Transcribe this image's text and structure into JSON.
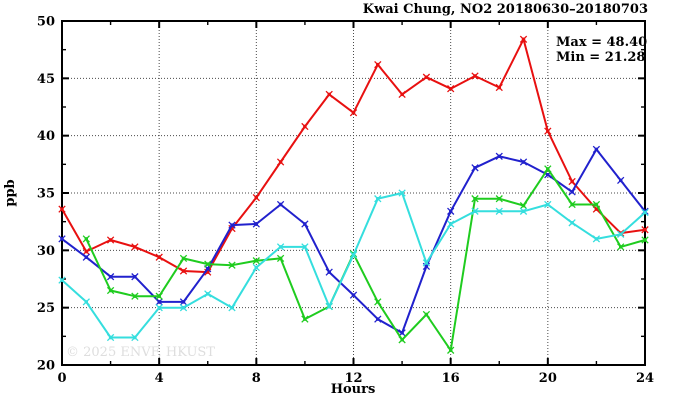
{
  "watermark": "© 2025 ENVF, HKUST",
  "chart_data": {
    "type": "line",
    "title": "Kwai Chung, NO2 20180630–20180703",
    "xlabel": "Hours",
    "ylabel": "ppb",
    "xlim": [
      0,
      24
    ],
    "ylim": [
      20,
      50
    ],
    "grid": "dotted-at-major-ticks",
    "legend_position": "none",
    "annotations": {
      "max": "Max = 48.40",
      "min": "Min = 21.28"
    },
    "x_ticks": {
      "major": [
        0,
        4,
        8,
        12,
        16,
        20,
        24
      ],
      "minor_step": 2
    },
    "y_ticks": {
      "major": [
        20,
        25,
        30,
        35,
        40,
        45,
        50
      ],
      "minor_step": 2.5
    },
    "x": [
      0,
      1,
      2,
      3,
      4,
      5,
      6,
      7,
      8,
      9,
      10,
      11,
      12,
      13,
      14,
      15,
      16,
      17,
      18,
      19,
      20,
      21,
      22,
      23,
      24
    ],
    "series": [
      {
        "name": "red-line",
        "color": "#e81010",
        "values": [
          33.6,
          29.9,
          30.9,
          30.3,
          29.4,
          28.2,
          28.1,
          31.9,
          34.6,
          37.7,
          40.8,
          43.6,
          42.0,
          46.2,
          43.6,
          45.1,
          44.1,
          45.2,
          44.2,
          48.4,
          40.4,
          36.0,
          33.6,
          31.5,
          31.8
        ]
      },
      {
        "name": "blue-line",
        "color": "#2121cd",
        "values": [
          31.0,
          29.4,
          27.7,
          27.7,
          25.5,
          25.5,
          28.4,
          32.2,
          32.3,
          34.0,
          32.3,
          28.1,
          26.1,
          24.0,
          22.8,
          28.6,
          33.4,
          37.2,
          38.2,
          37.7,
          36.6,
          35.1,
          38.8,
          36.1,
          33.4
        ]
      },
      {
        "name": "green-line",
        "color": "#1fcc1f",
        "values": [
          null,
          31.0,
          26.5,
          26.0,
          26.0,
          29.3,
          28.8,
          28.7,
          29.1,
          29.3,
          24.0,
          25.1,
          29.7,
          25.5,
          22.2,
          24.4,
          21.28,
          34.5,
          34.5,
          33.9,
          37.1,
          34.0,
          34.0,
          30.3,
          30.9
        ]
      },
      {
        "name": "cyan-line",
        "color": "#35dede",
        "values": [
          27.4,
          25.5,
          22.4,
          22.4,
          25.0,
          25.0,
          26.2,
          25.0,
          28.5,
          30.3,
          30.3,
          25.1,
          29.6,
          34.5,
          35.0,
          28.9,
          32.3,
          33.4,
          33.4,
          33.4,
          34.0,
          32.4,
          31.0,
          31.4,
          33.3
        ]
      }
    ]
  }
}
